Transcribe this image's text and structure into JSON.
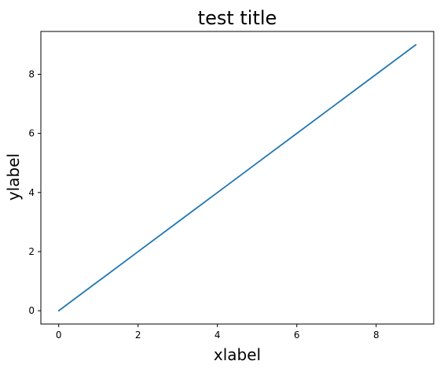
{
  "chart_data": {
    "type": "line",
    "title": "test title",
    "xlabel": "xlabel",
    "ylabel": "ylabel",
    "xlim": [
      -0.45,
      9.45
    ],
    "ylim": [
      -0.45,
      9.45
    ],
    "x_ticks": [
      0,
      2,
      4,
      6,
      8
    ],
    "y_ticks": [
      0,
      2,
      4,
      6,
      8
    ],
    "grid": false,
    "series": [
      {
        "x": [
          0,
          1,
          2,
          3,
          4,
          5,
          6,
          7,
          8,
          9
        ],
        "y": [
          0,
          1,
          2,
          3,
          4,
          5,
          6,
          7,
          8,
          9
        ],
        "color": "#1f77b4"
      }
    ]
  }
}
